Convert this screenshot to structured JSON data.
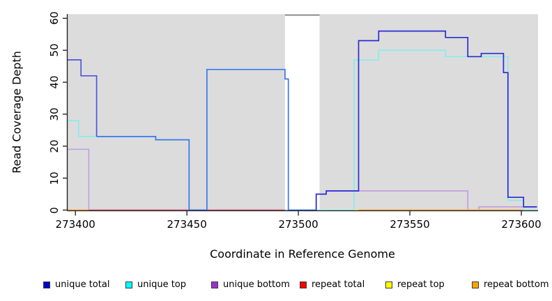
{
  "chart_data": {
    "type": "line",
    "subtype": "step-coverage-plot",
    "title": "",
    "xlabel": "Coordinate in Reference Genome",
    "ylabel": "Read Coverage Depth",
    "xlim": [
      273396.5,
      273607.5
    ],
    "ylim": [
      0,
      61.3
    ],
    "x_ticks": [
      "273400",
      "273450",
      "273500",
      "273550",
      "273600"
    ],
    "x_tick_values": [
      273400,
      273450,
      273500,
      273550,
      273600
    ],
    "y_ticks": [
      "0",
      "10",
      "20",
      "30",
      "40",
      "50",
      "60"
    ],
    "y_tick_values": [
      0,
      10,
      20,
      30,
      40,
      50,
      60
    ],
    "grid": "off",
    "panel_background": "#DCDCDC",
    "masked_region": {
      "from": 273494,
      "to": 273509.5,
      "color": "#FFFFFF",
      "top_line_color": "#8C8C8C",
      "top_line_value": 61
    },
    "legend_position": "bottom",
    "legend": [
      {
        "label": "unique total",
        "color": "#0000CC"
      },
      {
        "label": "unique top",
        "color": "#00FFFF"
      },
      {
        "label": "unique bottom",
        "color": "#9932CC"
      },
      {
        "label": "repeat total",
        "color": "#FF0000"
      },
      {
        "label": "repeat top",
        "color": "#FFFF00"
      },
      {
        "label": "repeat bottom",
        "color": "#FFA500"
      }
    ],
    "lines": [
      {
        "name": "repeat-top",
        "color": "#FFE24B",
        "points": [
          [
            273509,
            0
          ],
          [
            273527,
            0
          ]
        ]
      },
      {
        "name": "unique-bottom",
        "color": "#C49FE2",
        "points": [
          [
            273396.5,
            19
          ],
          [
            273406,
            19
          ],
          [
            273406,
            0
          ],
          [
            273508,
            0
          ],
          [
            273508,
            5
          ],
          [
            273512.5,
            5
          ],
          [
            273512.5,
            6
          ],
          [
            273576,
            6
          ],
          [
            273576,
            0
          ],
          [
            273581,
            0
          ],
          [
            273581,
            1
          ],
          [
            273607,
            1
          ]
        ]
      },
      {
        "name": "repeat-bottom",
        "color": "#FFA033",
        "points": [
          [
            273396.5,
            0
          ],
          [
            273406,
            0
          ]
        ]
      },
      {
        "name": "repeat-bottom",
        "color": "#FFA033",
        "points": [
          [
            273527,
            0
          ],
          [
            273607,
            0
          ]
        ]
      },
      {
        "name": "unique-top",
        "color": "#8AECEC",
        "points": [
          [
            273396.5,
            28
          ],
          [
            273401.5,
            28
          ],
          [
            273401.5,
            23
          ],
          [
            273436,
            23
          ],
          [
            273436,
            22
          ],
          [
            273451,
            22
          ],
          [
            273451,
            0
          ],
          [
            273525,
            0
          ],
          [
            273525,
            47
          ],
          [
            273536,
            47
          ],
          [
            273536,
            50
          ],
          [
            273566,
            50
          ],
          [
            273566,
            48
          ],
          [
            273594,
            48
          ],
          [
            273594,
            3
          ],
          [
            273601,
            3
          ],
          [
            273601,
            0
          ],
          [
            273607,
            0
          ]
        ]
      },
      {
        "name": "repeat-total",
        "color": "#DC5878",
        "points": [
          [
            273406,
            0
          ],
          [
            273494,
            0
          ]
        ]
      },
      {
        "name": "unique-total",
        "color": "#4E55DC",
        "points": [
          [
            273396.5,
            47
          ],
          [
            273402.5,
            47
          ],
          [
            273402.5,
            42
          ],
          [
            273409.5,
            42
          ],
          [
            273409.5,
            23
          ]
        ]
      },
      {
        "name": "unique-total",
        "color": "#3B76EE",
        "points": [
          [
            273409.5,
            23
          ],
          [
            273436,
            23
          ],
          [
            273436,
            22
          ],
          [
            273451,
            22
          ],
          [
            273451,
            0
          ],
          [
            273459,
            0
          ],
          [
            273459,
            44
          ],
          [
            273494,
            44
          ],
          [
            273494,
            41
          ],
          [
            273495.5,
            41
          ],
          [
            273495.5,
            0
          ],
          [
            273508,
            0
          ]
        ]
      },
      {
        "name": "unique-total",
        "color": "#2B2BD5",
        "points": [
          [
            273508,
            0
          ],
          [
            273508,
            5
          ],
          [
            273512.5,
            5
          ],
          [
            273512.5,
            6
          ],
          [
            273527,
            6
          ],
          [
            273527,
            53
          ],
          [
            273536,
            53
          ],
          [
            273536,
            56
          ],
          [
            273566,
            56
          ],
          [
            273566,
            54
          ],
          [
            273576,
            54
          ],
          [
            273576,
            48
          ],
          [
            273582,
            48
          ],
          [
            273582,
            49
          ],
          [
            273592,
            49
          ],
          [
            273592,
            43
          ],
          [
            273594,
            43
          ],
          [
            273594,
            4
          ],
          [
            273601,
            4
          ],
          [
            273601,
            1
          ],
          [
            273607,
            1
          ]
        ]
      }
    ]
  }
}
